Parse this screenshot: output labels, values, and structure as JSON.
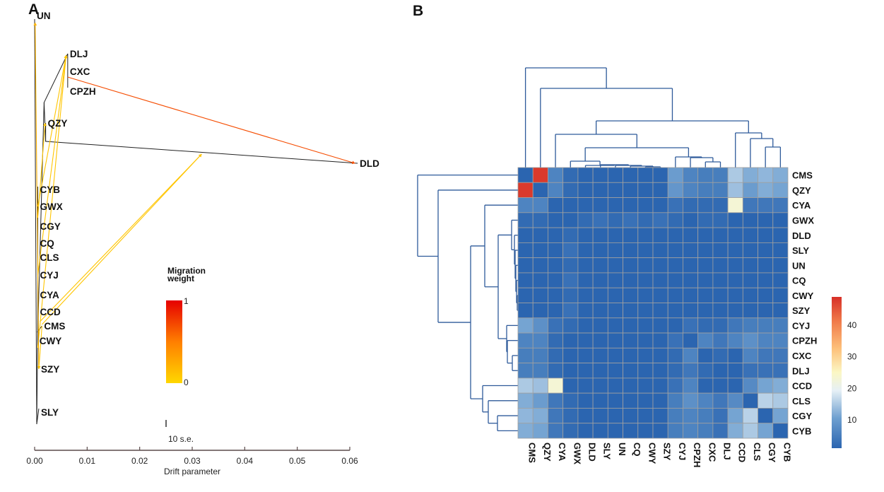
{
  "figure": {
    "panels": [
      "A",
      "B"
    ]
  },
  "chart_data": [
    {
      "type": "tree",
      "panel": "A",
      "title": "",
      "xlabel": "Drift parameter",
      "xlim": [
        0.0,
        0.06
      ],
      "xticks": [
        "0.00",
        "0.01",
        "0.02",
        "0.03",
        "0.04",
        "0.05",
        "0.06"
      ],
      "scale_bar_label": "10 s.e.",
      "legend": {
        "title_line1": "Migration",
        "title_line2": "weight",
        "max_label": "1",
        "min_label": "0",
        "colors": [
          "#FFD700",
          "#FF7F00",
          "#E60000"
        ],
        "placement": "center"
      },
      "tips": [
        {
          "name": "UN",
          "drift": 0.0
        },
        {
          "name": "DLJ",
          "drift": 0.0063
        },
        {
          "name": "CXC",
          "drift": 0.0063
        },
        {
          "name": "CPZH",
          "drift": 0.0063
        },
        {
          "name": "QZY",
          "drift": 0.0021
        },
        {
          "name": "DLD",
          "drift": 0.0615
        },
        {
          "name": "CYB",
          "drift": 0.0006
        },
        {
          "name": "GWX",
          "drift": 0.0006
        },
        {
          "name": "CGY",
          "drift": 0.0006
        },
        {
          "name": "CQ",
          "drift": 0.0006
        },
        {
          "name": "CLS",
          "drift": 0.0006
        },
        {
          "name": "CYJ",
          "drift": 0.0006
        },
        {
          "name": "CYA",
          "drift": 0.0006
        },
        {
          "name": "CCD",
          "drift": 0.0006
        },
        {
          "name": "CMS",
          "drift": 0.0014
        },
        {
          "name": "CWY",
          "drift": 0.0005
        },
        {
          "name": "SZY",
          "drift": 0.0008
        },
        {
          "name": "SLY",
          "drift": 0.0008
        }
      ],
      "migration_edges": [
        {
          "from": "CXC",
          "to": "DLD",
          "weight": 0.7
        },
        {
          "from": "CMS",
          "to": "QZY-DLD branch",
          "weight": 0.1
        },
        {
          "from": "CCD",
          "to": "QZY-DLD branch",
          "weight": 0.1
        },
        {
          "from": "CWY",
          "to": "DLJ",
          "weight": 0.1
        },
        {
          "from": "CYJ",
          "to": "DLJ",
          "weight": 0.1
        },
        {
          "from": "GWX",
          "to": "DLJ",
          "weight": 0.1
        },
        {
          "from": "CGY",
          "to": "QZY",
          "weight": 0.1
        },
        {
          "from": "SZY",
          "to": "UN",
          "weight": 0.2
        },
        {
          "from": "CMS",
          "to": "SZY",
          "weight": 0.1
        }
      ]
    },
    {
      "type": "heatmap",
      "panel": "B",
      "title": "",
      "colorbar": {
        "ticks": [
          "10",
          "20",
          "30",
          "40"
        ],
        "range": [
          1,
          49
        ],
        "colors": [
          "#2B65B0",
          "#6FA0D0",
          "#E6F0F6",
          "#FBF7C4",
          "#FDC07A",
          "#F07A4A",
          "#D73027"
        ]
      },
      "row_labels": [
        "CMS",
        "QZY",
        "CYA",
        "GWX",
        "DLD",
        "SLY",
        "UN",
        "CQ",
        "CWY",
        "SZY",
        "CYJ",
        "CPZH",
        "CXC",
        "DLJ",
        "CCD",
        "CLS",
        "CGY",
        "CYB"
      ],
      "col_labels": [
        "CMS",
        "QZY",
        "CYA",
        "GWX",
        "DLD",
        "SLY",
        "UN",
        "CQ",
        "CWY",
        "SZY",
        "CYJ",
        "CPZH",
        "CXC",
        "DLJ",
        "CCD",
        "CLS",
        "CGY",
        "CYB"
      ],
      "values": [
        [
          1,
          48,
          6,
          2,
          1,
          1,
          1,
          1,
          1,
          1,
          10,
          6,
          5,
          5,
          15,
          12,
          13,
          12
        ],
        [
          48,
          1,
          6,
          2,
          1,
          1,
          1,
          1,
          1,
          1,
          9,
          6,
          5,
          5,
          14,
          10,
          12,
          11
        ],
        [
          6,
          6,
          1,
          1,
          1,
          1,
          1,
          1,
          1,
          1,
          3,
          2,
          2,
          2,
          23,
          4,
          4,
          4
        ],
        [
          2,
          2,
          1,
          1,
          2,
          3,
          2,
          3,
          2,
          3,
          2,
          1,
          2,
          2,
          1,
          1,
          1,
          1
        ],
        [
          1,
          1,
          1,
          2,
          1,
          1,
          1,
          1,
          1,
          1,
          1,
          1,
          1,
          1,
          1,
          1,
          1,
          1
        ],
        [
          1,
          1,
          1,
          3,
          1,
          1,
          1,
          1,
          1,
          1,
          1,
          1,
          1,
          1,
          1,
          1,
          1,
          1
        ],
        [
          1,
          1,
          1,
          2,
          1,
          1,
          1,
          1,
          1,
          1,
          1,
          1,
          1,
          1,
          1,
          1,
          1,
          1
        ],
        [
          1,
          1,
          1,
          3,
          1,
          1,
          1,
          1,
          1,
          1,
          1,
          1,
          1,
          1,
          1,
          1,
          1,
          1
        ],
        [
          1,
          1,
          1,
          2,
          1,
          1,
          1,
          1,
          1,
          1,
          1,
          1,
          1,
          1,
          1,
          1,
          1,
          1
        ],
        [
          1,
          1,
          1,
          3,
          1,
          1,
          1,
          1,
          1,
          1,
          1,
          1,
          1,
          1,
          1,
          1,
          1,
          1
        ],
        [
          11,
          8,
          3,
          2,
          1,
          1,
          1,
          1,
          1,
          1,
          1,
          3,
          2,
          2,
          4,
          5,
          5,
          5
        ],
        [
          6,
          6,
          2,
          1,
          1,
          1,
          1,
          1,
          1,
          1,
          3,
          1,
          6,
          4,
          6,
          8,
          6,
          6
        ],
        [
          5,
          5,
          2,
          1,
          1,
          1,
          1,
          1,
          1,
          1,
          2,
          6,
          1,
          2,
          1,
          6,
          4,
          4
        ],
        [
          5,
          5,
          2,
          1,
          1,
          1,
          1,
          1,
          1,
          1,
          2,
          4,
          2,
          1,
          1,
          3,
          3,
          3
        ],
        [
          15,
          14,
          23,
          1,
          1,
          1,
          1,
          1,
          1,
          1,
          3,
          6,
          1,
          1,
          1,
          7,
          11,
          12
        ],
        [
          12,
          10,
          4,
          2,
          1,
          1,
          1,
          1,
          1,
          1,
          5,
          8,
          6,
          4,
          7,
          1,
          16,
          15
        ],
        [
          13,
          12,
          4,
          2,
          1,
          1,
          1,
          1,
          1,
          1,
          5,
          6,
          5,
          3,
          11,
          16,
          1,
          11
        ],
        [
          12,
          11,
          4,
          2,
          1,
          1,
          1,
          1,
          1,
          1,
          5,
          6,
          5,
          3,
          12,
          15,
          11,
          1
        ]
      ],
      "row_dendrogram": true,
      "col_dendrogram": true
    }
  ]
}
